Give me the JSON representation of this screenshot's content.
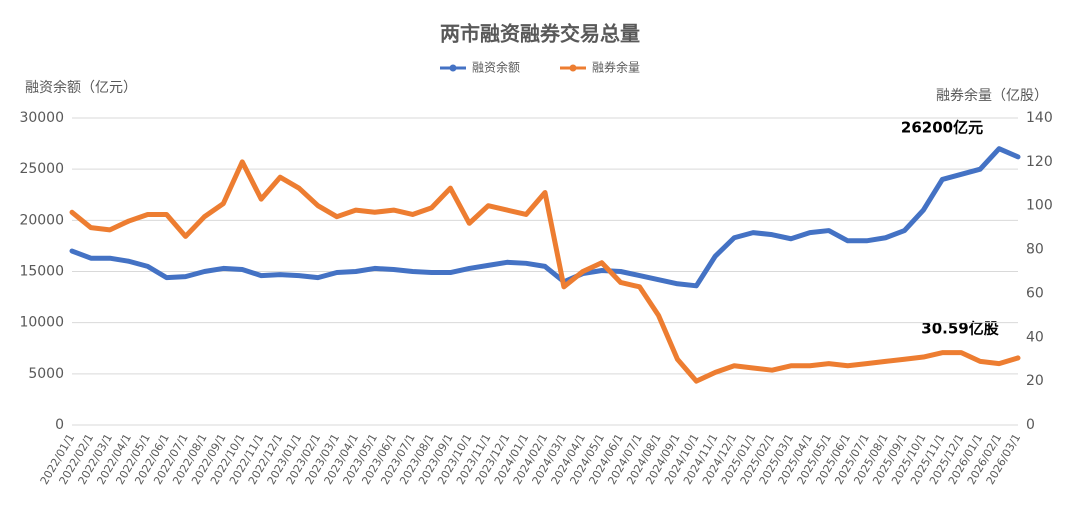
{
  "chart_data": {
    "type": "line",
    "title": "两市融资融券交易总量",
    "ylabel": "融资余额（亿元）",
    "y2label": "融券余量（亿股）",
    "categories": [
      "2022/01/1",
      "2022/02/1",
      "2022/03/1",
      "2022/04/1",
      "2022/05/1",
      "2022/06/1",
      "2022/07/1",
      "2022/08/1",
      "2022/09/1",
      "2022/10/1",
      "2022/11/1",
      "2022/12/1",
      "2023/01/1",
      "2023/02/1",
      "2023/03/1",
      "2023/04/1",
      "2023/05/1",
      "2023/06/1",
      "2023/07/1",
      "2023/08/1",
      "2023/09/1",
      "2023/10/1",
      "2023/11/1",
      "2023/12/1",
      "2024/01/1",
      "2024/02/1",
      "2024/03/1",
      "2024/04/1",
      "2024/05/1",
      "2024/06/1",
      "2024/07/1",
      "2024/08/1",
      "2024/09/1",
      "2024/10/1",
      "2024/11/1",
      "2024/12/1",
      "2025/01/1",
      "2025/02/1",
      "2025/03/1",
      "2025/04/1",
      "2025/05/1",
      "2025/06/1",
      "2025/07/1",
      "2025/08/1",
      "2025/09/1",
      "2025/10/1",
      "2025/11/1",
      "2025/12/1",
      "2026/01/1",
      "2026/02/1",
      "2026/03/1"
    ],
    "series": [
      {
        "name": "融资余额",
        "color": "#4472c4",
        "axis": "y",
        "values": [
          17000,
          16300,
          16300,
          16000,
          15500,
          14400,
          14500,
          15000,
          15300,
          15200,
          14600,
          14700,
          14600,
          14400,
          14900,
          15000,
          15300,
          15200,
          15000,
          14900,
          14900,
          15300,
          15600,
          15900,
          15800,
          15500,
          14000,
          14800,
          15100,
          15000,
          14600,
          14200,
          13800,
          13600,
          16500,
          18300,
          18800,
          18600,
          18200,
          18800,
          19000,
          18000,
          18000,
          18300,
          19000,
          21000,
          24000,
          24500,
          25000,
          27000,
          26200
        ]
      },
      {
        "name": "融券余量",
        "color": "#ed7d31",
        "axis": "y2",
        "values": [
          97,
          90,
          89,
          93,
          96,
          96,
          86,
          95,
          101,
          120,
          103,
          113,
          108,
          100,
          95,
          98,
          97,
          98,
          96,
          99,
          108,
          92,
          100,
          98,
          96,
          106,
          63,
          70,
          74,
          65,
          63,
          50,
          30,
          20,
          24,
          27,
          26,
          25,
          27,
          27,
          28,
          27,
          28,
          29,
          30,
          31,
          33,
          33,
          29,
          28,
          30.59
        ]
      }
    ],
    "annotations": [
      "26200亿元",
      "30.59亿股"
    ],
    "ylim": [
      0,
      30000
    ],
    "yticks": [
      0,
      5000,
      10000,
      15000,
      20000,
      25000,
      30000
    ],
    "y2lim": [
      0,
      140
    ],
    "y2ticks": [
      0,
      20,
      40,
      60,
      80,
      100,
      120,
      140
    ],
    "grid": true
  }
}
